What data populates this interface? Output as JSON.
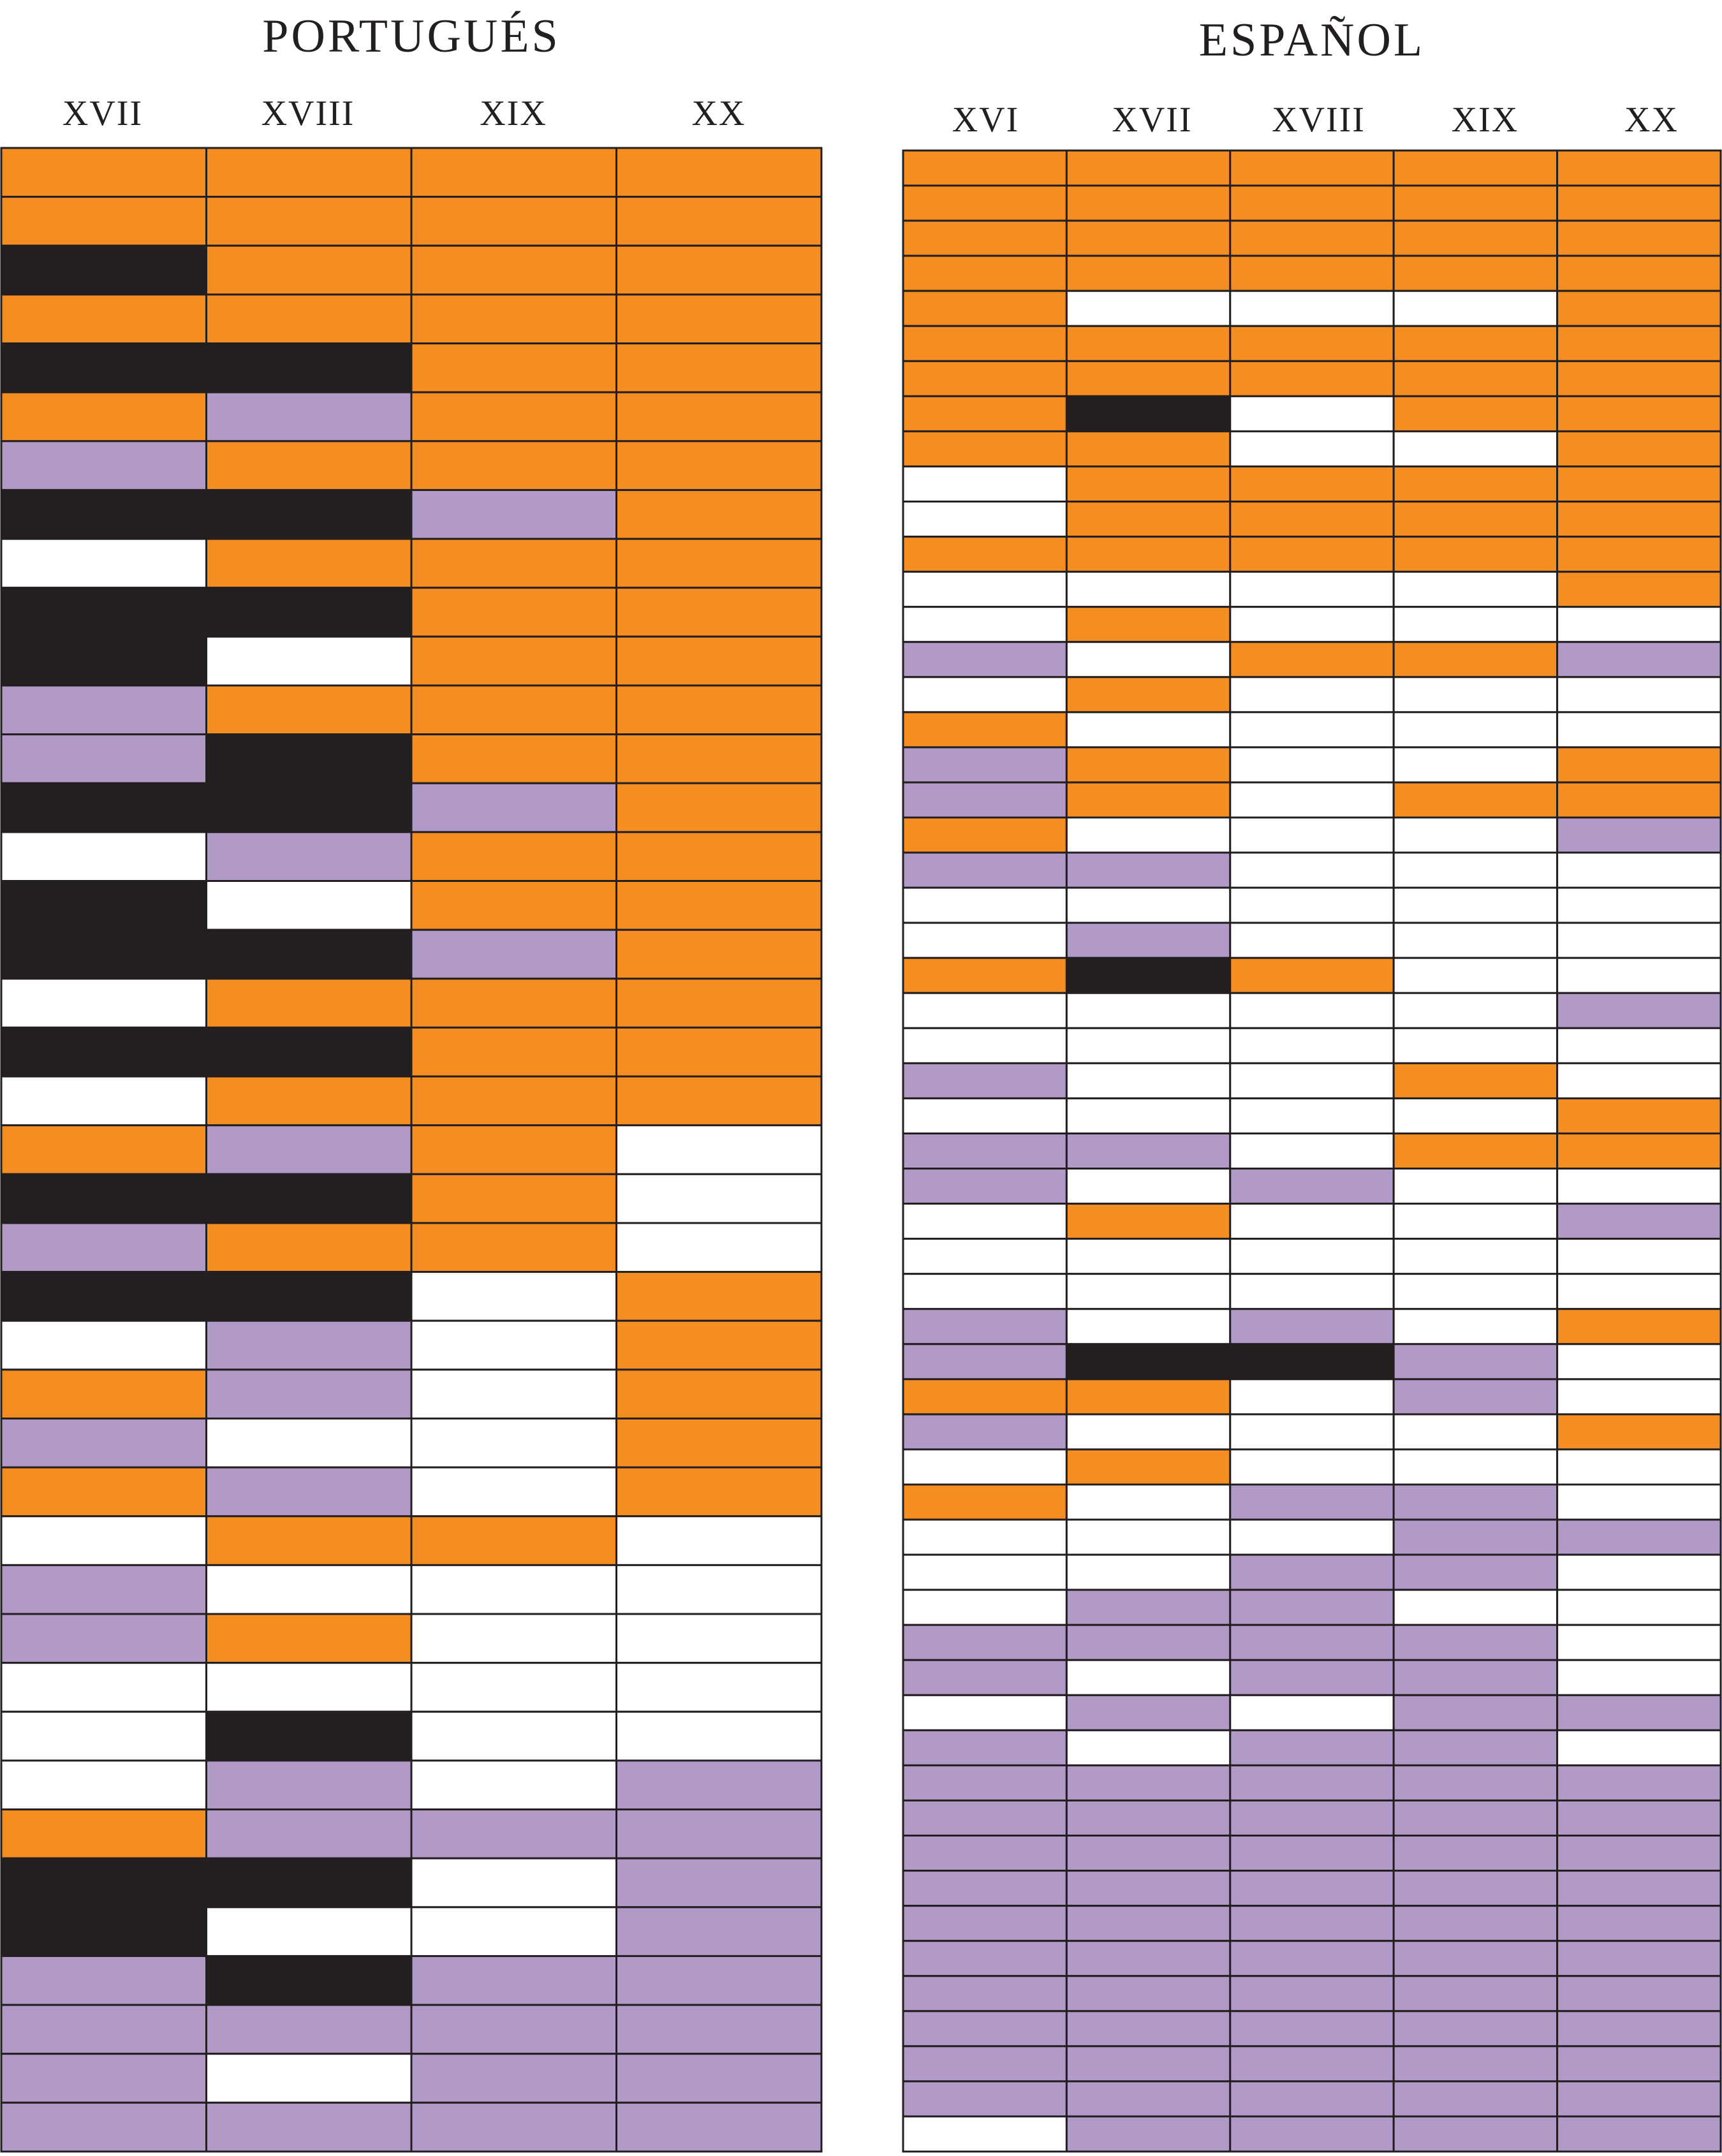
{
  "colors": {
    "O": "#f58e22",
    "P": "#b199c8",
    "B": "#231f20",
    "W": "#ffffff",
    "line": "#231f20"
  },
  "chart_data": [
    {
      "type": "heatmap",
      "title": "PORTUGUÉS",
      "columns": [
        "XVII",
        "XVIII",
        "XIX",
        "XX"
      ],
      "color_key": {
        "O": "orange",
        "P": "purple",
        "B": "black",
        "W": "white"
      },
      "rows": [
        "OOOO",
        "OOOO",
        "BOOO",
        "OOOO",
        "BBOO",
        "OPOO",
        "POOO",
        "BBPO",
        "WOOO",
        "BBOO",
        "BWOO",
        "POOO",
        "PBOO",
        "BBPO",
        "WPOO",
        "BWOO",
        "BBPO",
        "WOOO",
        "BBOO",
        "WOOO",
        "OPOW",
        "BBOW",
        "POOW",
        "BBWO",
        "WPWO",
        "OPWO",
        "PWWO",
        "OPWO",
        "WOOW",
        "PWWW",
        "POWW",
        "WWWW",
        "WBWW",
        "WPWP",
        "OPPP",
        "BBWP",
        "BWWP",
        "PBPP",
        "PPPP",
        "PWPP",
        "PPPP"
      ]
    },
    {
      "type": "heatmap",
      "title": "ESPAÑOL",
      "columns": [
        "XVI",
        "XVII",
        "XVIII",
        "XIX",
        "XX"
      ],
      "color_key": {
        "O": "orange",
        "P": "purple",
        "B": "black",
        "W": "white"
      },
      "rows": [
        "OOOOO",
        "OOOOO",
        "OOOOO",
        "OOOOO",
        "OWWWO",
        "OOOOO",
        "OOOOO",
        "OBWOO",
        "OOWWO",
        "WOOOO",
        "WOOOO",
        "OOOOO",
        "WWWWO",
        "WOWWW",
        "PWOOP",
        "WOWWW",
        "OWWWW",
        "POWWO",
        "POWOO",
        "OWWWP",
        "PPWWW",
        "WWWWW",
        "WPWWW",
        "OBOWW",
        "WWWWP",
        "WWWWW",
        "PWWOW",
        "WWWWO",
        "PPWOO",
        "PWPWW",
        "WOWWP",
        "WWWWW",
        "WWWWW",
        "PWPWO",
        "PBBPW",
        "OOWPW",
        "PWWWO",
        "WOWWW",
        "OWPPW",
        "WWWPP",
        "WWPPW",
        "WPPWW",
        "PPPPW",
        "PWPPW",
        "WPWPP",
        "PWPPW",
        "PPPPP",
        "PPPPP",
        "PPPPP",
        "PPPPP",
        "PPPPP",
        "PPPPP",
        "PPPPP",
        "PPPPP",
        "PPPPP",
        "PPPPP",
        "WPPPP"
      ]
    }
  ]
}
